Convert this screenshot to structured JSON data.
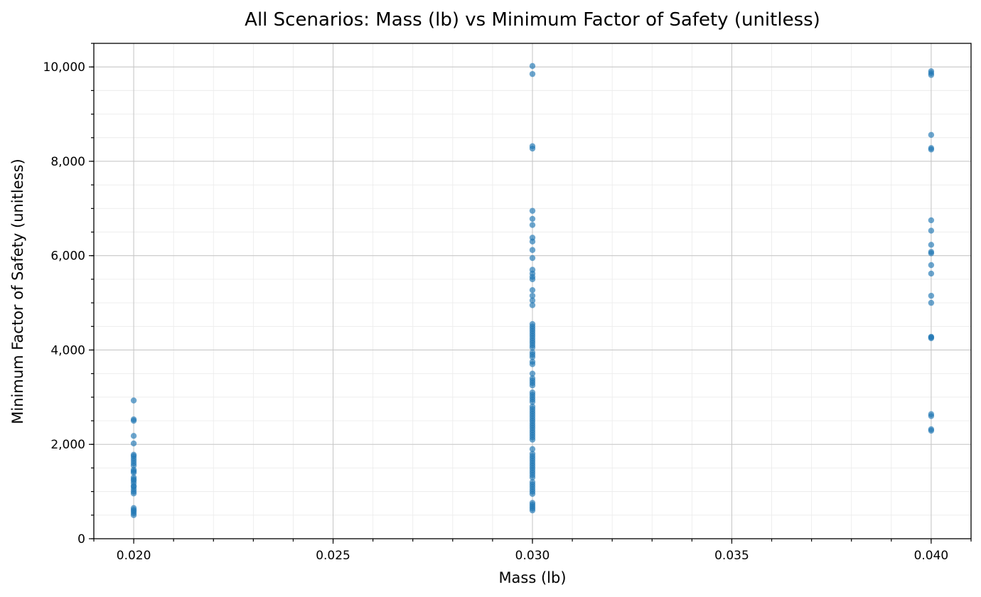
{
  "chart_data": {
    "type": "scatter",
    "title": "All Scenarios: Mass (lb) vs Minimum Factor of Safety (unitless)",
    "xlabel": "Mass (lb)",
    "ylabel": "Minimum Factor of Safety (unitless)",
    "xlim": [
      0.019,
      0.041
    ],
    "ylim": [
      0,
      10500
    ],
    "x_ticks": [
      0.02,
      0.025,
      0.03,
      0.035,
      0.04
    ],
    "x_tick_labels": [
      "0.020",
      "0.025",
      "0.030",
      "0.035",
      "0.040"
    ],
    "x_minor_step": 0.001,
    "y_ticks": [
      0,
      2000,
      4000,
      6000,
      8000,
      10000
    ],
    "y_tick_labels": [
      "0",
      "2,000",
      "4,000",
      "6,000",
      "8,000",
      "10,000"
    ],
    "y_minor_step": 500,
    "grid": true,
    "point_color": "#1f77b4",
    "series": [
      {
        "x": [
          0.02,
          0.02,
          0.02,
          0.02,
          0.02,
          0.02,
          0.02,
          0.02,
          0.02,
          0.02,
          0.02,
          0.02,
          0.02,
          0.02,
          0.02,
          0.02,
          0.02,
          0.02,
          0.02,
          0.02,
          0.02,
          0.02,
          0.02,
          0.02,
          0.02,
          0.02,
          0.02,
          0.02
        ],
        "y": [
          500,
          540,
          580,
          610,
          650,
          960,
          1000,
          1050,
          1100,
          1180,
          1230,
          1260,
          1300,
          1400,
          1430,
          1460,
          1550,
          1600,
          1650,
          1700,
          1750,
          1780,
          2020,
          2180,
          2500,
          2530,
          2930,
          1120
        ]
      },
      {
        "x": [
          0.03,
          0.03,
          0.03,
          0.03,
          0.03,
          0.03,
          0.03,
          0.03,
          0.03,
          0.03,
          0.03,
          0.03,
          0.03,
          0.03,
          0.03,
          0.03,
          0.03,
          0.03,
          0.03,
          0.03,
          0.03,
          0.03,
          0.03,
          0.03,
          0.03,
          0.03,
          0.03,
          0.03,
          0.03,
          0.03,
          0.03,
          0.03,
          0.03,
          0.03,
          0.03,
          0.03,
          0.03,
          0.03,
          0.03,
          0.03,
          0.03,
          0.03,
          0.03,
          0.03,
          0.03,
          0.03,
          0.03,
          0.03,
          0.03,
          0.03,
          0.03,
          0.03,
          0.03,
          0.03,
          0.03,
          0.03,
          0.03,
          0.03,
          0.03,
          0.03,
          0.03,
          0.03,
          0.03,
          0.03,
          0.03,
          0.03,
          0.03,
          0.03,
          0.03,
          0.03,
          0.03,
          0.03,
          0.03,
          0.03,
          0.03,
          0.03,
          0.03,
          0.03
        ],
        "y": [
          600,
          640,
          680,
          720,
          760,
          950,
          1000,
          1050,
          1100,
          1150,
          1200,
          1300,
          1350,
          1400,
          1450,
          1500,
          1550,
          1600,
          1650,
          1700,
          1750,
          1800,
          1900,
          2100,
          2150,
          2200,
          2250,
          2300,
          2350,
          2400,
          2450,
          2500,
          2550,
          2600,
          2650,
          2700,
          2750,
          2800,
          2900,
          2950,
          3000,
          3050,
          3100,
          3250,
          3300,
          3350,
          3400,
          3500,
          3700,
          3750,
          3850,
          3900,
          3950,
          4050,
          4100,
          4150,
          4200,
          4250,
          4300,
          4350,
          4400,
          4450,
          4550,
          4950,
          5050,
          5150,
          5270,
          5500,
          5550,
          5620,
          5700,
          5950,
          6120,
          6300,
          6380,
          6650,
          6780,
          6950
        ]
      },
      {
        "x": [
          0.03,
          0.03,
          0.03,
          0.03,
          0.03
        ],
        "y": [
          8270,
          8320,
          9850,
          10020,
          4500
        ]
      },
      {
        "x": [
          0.04,
          0.04,
          0.04,
          0.04,
          0.04,
          0.04,
          0.04,
          0.04,
          0.04,
          0.04,
          0.04,
          0.04,
          0.04,
          0.04,
          0.04,
          0.04,
          0.04,
          0.04,
          0.04,
          0.04,
          0.04,
          0.04
        ],
        "y": [
          2290,
          2320,
          2600,
          2640,
          4250,
          4280,
          5000,
          5150,
          5620,
          5800,
          6050,
          6080,
          6230,
          6530,
          6750,
          8250,
          8280,
          8560,
          9830,
          9870,
          9910,
          4270
        ]
      }
    ]
  }
}
